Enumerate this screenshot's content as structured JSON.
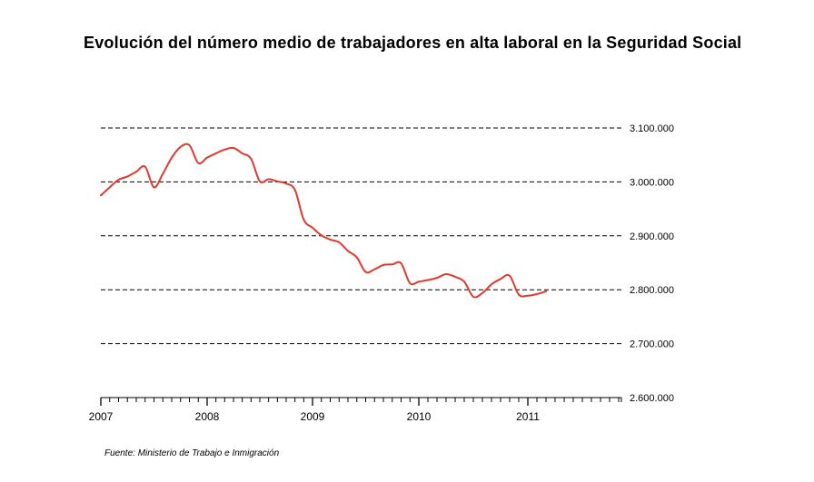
{
  "header": {
    "title": "Evolución del número medio de trabajadores en alta laboral en la Seguridad Social"
  },
  "footer": {
    "source": "Fuente: Ministerio de Trabajo e Inmigración"
  },
  "chart_data": {
    "type": "line",
    "title": "Evolución del número medio de trabajadores en alta laboral en la Seguridad Social",
    "xlabel": "",
    "ylabel": "",
    "ylim": [
      2600000,
      3100000
    ],
    "xlim": [
      "2007-01",
      "2012-01"
    ],
    "y_axis_position": "right",
    "grid": "horizontal dashed",
    "y_ticks": [
      {
        "value": 3100000,
        "label": "3.100.000"
      },
      {
        "value": 3000000,
        "label": "3.000.000"
      },
      {
        "value": 2900000,
        "label": "2.900.000"
      },
      {
        "value": 2800000,
        "label": "2.800.000"
      },
      {
        "value": 2700000,
        "label": "2.700.000"
      },
      {
        "value": 2600000,
        "label": "2.600.000"
      }
    ],
    "x_ticks": [
      {
        "value": "2007-01",
        "label": "2007"
      },
      {
        "value": "2008-01",
        "label": "2008"
      },
      {
        "value": "2009-01",
        "label": "2009"
      },
      {
        "value": "2010-01",
        "label": "2010"
      },
      {
        "value": "2011-01",
        "label": "2011"
      }
    ],
    "colors": {
      "line": "#e03a2e",
      "grid": "#000000"
    },
    "series": [
      {
        "color": "#e03a2e",
        "x": [
          "2007-01",
          "2007-02",
          "2007-03",
          "2007-04",
          "2007-05",
          "2007-06",
          "2007-07",
          "2007-08",
          "2007-09",
          "2007-10",
          "2007-11",
          "2007-12",
          "2008-01",
          "2008-02",
          "2008-03",
          "2008-04",
          "2008-05",
          "2008-06",
          "2008-07",
          "2008-08",
          "2008-09",
          "2008-10",
          "2008-11",
          "2008-12",
          "2009-01",
          "2009-02",
          "2009-03",
          "2009-04",
          "2009-05",
          "2009-06",
          "2009-07",
          "2009-08",
          "2009-09",
          "2009-10",
          "2009-11",
          "2009-12",
          "2010-01",
          "2010-02",
          "2010-03",
          "2010-04",
          "2010-05",
          "2010-06",
          "2010-07",
          "2010-08",
          "2010-09",
          "2010-10",
          "2010-11",
          "2010-12",
          "2011-01",
          "2011-02",
          "2011-03"
        ],
        "values": [
          2975000,
          2990000,
          3004000,
          3010000,
          3019000,
          3028000,
          2990000,
          3015000,
          3045000,
          3065000,
          3068000,
          3035000,
          3045000,
          3053000,
          3060000,
          3063000,
          3053000,
          3043000,
          3001000,
          3005000,
          3001000,
          2997000,
          2985000,
          2930000,
          2915000,
          2901000,
          2893000,
          2888000,
          2872000,
          2860000,
          2833000,
          2838000,
          2846000,
          2847000,
          2849000,
          2812000,
          2815000,
          2818000,
          2822000,
          2829000,
          2824000,
          2815000,
          2787000,
          2794000,
          2810000,
          2820000,
          2826000,
          2791000,
          2789000,
          2792000,
          2797000
        ]
      }
    ]
  }
}
